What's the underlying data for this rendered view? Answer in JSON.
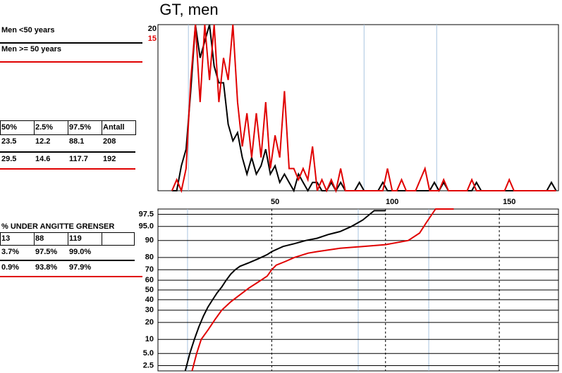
{
  "legend_title": null,
  "stats_table": {
    "columns": [
      "50%",
      "2.5%",
      "97.5%",
      "Antall"
    ],
    "rows": [
      [
        23.5,
        12.2,
        88.1,
        208
      ],
      [
        29.5,
        14.6,
        117.7,
        192
      ]
    ]
  },
  "percent_table": {
    "title": "% UNDER ANGITTE GRENSER",
    "limits": [
      13,
      88,
      119
    ],
    "rows": [
      [
        "3.7%",
        "97.5%",
        "99.0%"
      ],
      [
        "0.9%",
        "93.8%",
        "97.9%"
      ]
    ]
  },
  "chart_data": [
    {
      "type": "line",
      "title": "GT, men",
      "x": [
        6,
        8,
        10,
        12,
        14,
        16,
        18,
        20,
        22,
        24,
        26,
        28,
        30,
        32,
        34,
        36,
        38,
        40,
        42,
        44,
        46,
        48,
        50,
        52,
        54,
        56,
        58,
        60,
        62,
        64,
        66,
        68,
        70,
        72,
        74,
        76,
        78,
        80,
        82,
        84,
        86,
        88,
        90,
        92,
        94,
        96,
        98,
        100,
        102,
        104,
        106,
        108,
        110,
        112,
        114,
        116,
        118,
        120,
        122,
        124,
        126,
        128,
        130,
        132,
        134,
        136,
        138,
        140,
        142,
        144,
        146,
        148,
        150,
        152,
        154,
        156,
        158,
        160,
        162,
        164,
        166,
        168,
        170
      ],
      "xlim": [
        0,
        171
      ],
      "xticks": [
        50,
        100,
        150
      ],
      "ylim": [
        0,
        20
      ],
      "yticks": [
        20
      ],
      "y2lim": [
        0,
        15
      ],
      "y2ticks": [
        15
      ],
      "series": [
        {
          "name": "Men <50 years",
          "color": "#000000",
          "values": [
            0,
            0,
            3,
            5,
            12,
            20,
            16,
            18,
            20,
            15,
            13,
            13,
            8,
            6,
            7,
            4,
            2,
            4,
            2,
            3,
            5,
            2,
            3,
            1,
            2,
            1,
            0,
            2,
            1,
            0,
            1,
            1,
            0,
            0,
            1,
            0,
            1,
            0,
            0,
            0,
            1,
            0,
            0,
            0,
            0,
            1,
            0,
            0,
            0,
            0,
            0,
            0,
            0,
            0,
            0,
            0,
            1,
            0,
            1,
            0,
            0,
            0,
            0,
            0,
            0,
            1,
            0,
            0,
            0,
            0,
            0,
            0,
            0,
            0,
            0,
            0,
            0,
            0,
            0,
            0,
            0,
            1,
            0
          ]
        },
        {
          "name": "Men >= 50 years",
          "color": "#e00000",
          "axis": "y2",
          "values": [
            0,
            1,
            0,
            2,
            10,
            15,
            8,
            15,
            10,
            15,
            8,
            12,
            10,
            15,
            8,
            4,
            7,
            3,
            7,
            3,
            8,
            2,
            5,
            3,
            9,
            2,
            2,
            1,
            2,
            1,
            4,
            0,
            1,
            0,
            1,
            0,
            2,
            0,
            0,
            0,
            0,
            0,
            0,
            0,
            0,
            0,
            2,
            0,
            0,
            1,
            0,
            0,
            0,
            1,
            2,
            0,
            0,
            0,
            1,
            0,
            0,
            0,
            0,
            0,
            1,
            0,
            0,
            0,
            0,
            0,
            0,
            0,
            1,
            0,
            0,
            0,
            0,
            0,
            0,
            0,
            0,
            0,
            0
          ]
        }
      ]
    },
    {
      "type": "line",
      "yscale": "probit",
      "xlim": [
        0,
        176
      ],
      "xticks": [
        50,
        100,
        150
      ],
      "ylim": [
        1.8,
        98.2
      ],
      "yticks": [
        2.5,
        {
          "value": 5,
          "label": "5.0"
        },
        10,
        20,
        30,
        40,
        50,
        60,
        70,
        80,
        90,
        {
          "value": 95,
          "label": "95.0"
        },
        97.5
      ],
      "series": [
        {
          "color": "#000000",
          "x": [
            12,
            14,
            16,
            18,
            20,
            22,
            24,
            26,
            28,
            30,
            32,
            34,
            36,
            40,
            44,
            48,
            50,
            55,
            60,
            65,
            70,
            75,
            80,
            85,
            90,
            95,
            100
          ],
          "values": [
            1.8,
            5,
            10,
            17,
            25,
            33,
            40,
            47,
            53,
            60,
            66,
            70,
            73,
            76,
            79,
            82,
            84,
            87,
            88.5,
            90,
            91,
            92.5,
            93.5,
            95,
            96.5,
            98,
            98
          ]
        },
        {
          "color": "#e00000",
          "x": [
            15,
            17,
            19,
            22,
            25,
            28,
            32,
            36,
            40,
            44,
            48,
            50,
            52,
            56,
            60,
            66,
            70,
            80,
            90,
            100,
            105,
            110,
            115,
            118,
            122,
            130
          ],
          "values": [
            1.8,
            5,
            10,
            15,
            22,
            30,
            38,
            45,
            52,
            58,
            64,
            70,
            74,
            77,
            80,
            83,
            84,
            86,
            87,
            88,
            89,
            90,
            93,
            96,
            98.2,
            98.2
          ]
        }
      ]
    }
  ]
}
